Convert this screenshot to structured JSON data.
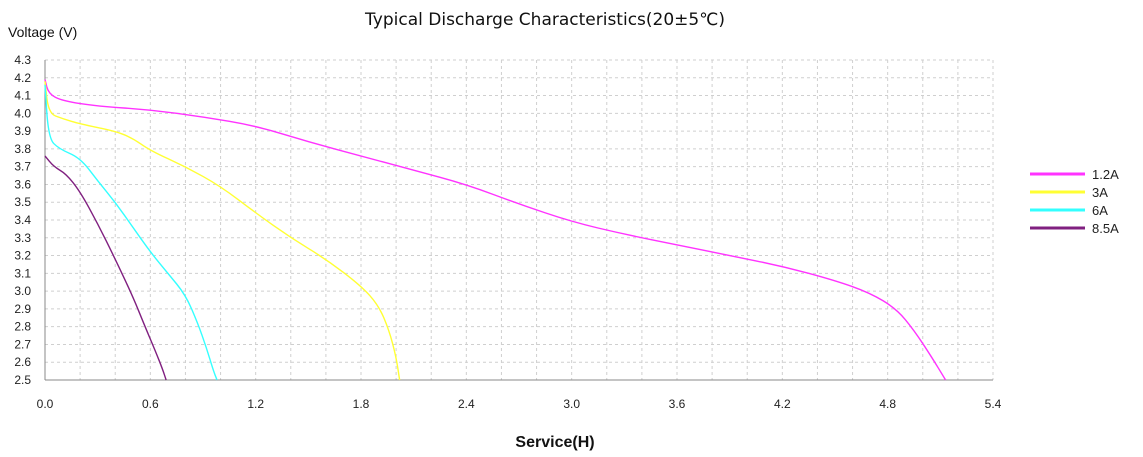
{
  "chart_data": {
    "type": "line",
    "title": "Typical Discharge Characteristics(20±5℃)",
    "xlabel": "Service(H)",
    "ylabel": "Voltage (V)",
    "xlim": [
      0.0,
      5.4
    ],
    "ylim": [
      2.5,
      4.3
    ],
    "grid": true,
    "legend": "right",
    "x_ticks": [
      "0.0",
      "0.6",
      "1.2",
      "1.8",
      "2.4",
      "3.0",
      "3.6",
      "4.2",
      "4.8",
      "5.4"
    ],
    "y_ticks": [
      "4.3",
      "4.2",
      "4.1",
      "4.0",
      "3.9",
      "3.8",
      "3.7",
      "3.6",
      "3.5",
      "3.4",
      "3.3",
      "3.2",
      "3.1",
      "3.0",
      "2.9",
      "2.8",
      "2.7",
      "2.6",
      "2.5"
    ],
    "series": [
      {
        "name": "1.2A",
        "color": "#ff33ff",
        "points": [
          [
            0.0,
            4.19
          ],
          [
            0.02,
            4.11
          ],
          [
            0.1,
            4.07
          ],
          [
            0.3,
            4.04
          ],
          [
            0.6,
            4.02
          ],
          [
            0.9,
            3.98
          ],
          [
            1.2,
            3.93
          ],
          [
            1.5,
            3.84
          ],
          [
            1.8,
            3.76
          ],
          [
            2.1,
            3.68
          ],
          [
            2.4,
            3.6
          ],
          [
            2.7,
            3.49
          ],
          [
            3.0,
            3.39
          ],
          [
            3.3,
            3.32
          ],
          [
            3.6,
            3.26
          ],
          [
            3.9,
            3.2
          ],
          [
            4.2,
            3.14
          ],
          [
            4.5,
            3.06
          ],
          [
            4.7,
            2.99
          ],
          [
            4.85,
            2.9
          ],
          [
            4.95,
            2.78
          ],
          [
            5.05,
            2.63
          ],
          [
            5.13,
            2.5
          ]
        ]
      },
      {
        "name": "3A",
        "color": "#ffff33",
        "points": [
          [
            0.0,
            4.18
          ],
          [
            0.02,
            4.0
          ],
          [
            0.1,
            3.97
          ],
          [
            0.2,
            3.94
          ],
          [
            0.4,
            3.9
          ],
          [
            0.5,
            3.86
          ],
          [
            0.6,
            3.79
          ],
          [
            0.8,
            3.7
          ],
          [
            1.0,
            3.59
          ],
          [
            1.2,
            3.44
          ],
          [
            1.4,
            3.3
          ],
          [
            1.6,
            3.18
          ],
          [
            1.8,
            3.03
          ],
          [
            1.9,
            2.92
          ],
          [
            1.96,
            2.78
          ],
          [
            2.0,
            2.63
          ],
          [
            2.02,
            2.5
          ]
        ]
      },
      {
        "name": "6A",
        "color": "#33ffff",
        "points": [
          [
            0.0,
            4.16
          ],
          [
            0.02,
            3.86
          ],
          [
            0.08,
            3.8
          ],
          [
            0.2,
            3.75
          ],
          [
            0.3,
            3.62
          ],
          [
            0.4,
            3.5
          ],
          [
            0.5,
            3.36
          ],
          [
            0.6,
            3.22
          ],
          [
            0.7,
            3.1
          ],
          [
            0.8,
            2.98
          ],
          [
            0.87,
            2.82
          ],
          [
            0.92,
            2.68
          ],
          [
            0.96,
            2.55
          ],
          [
            0.98,
            2.5
          ]
        ]
      },
      {
        "name": "8.5A",
        "color": "#802080",
        "points": [
          [
            0.0,
            3.76
          ],
          [
            0.05,
            3.7
          ],
          [
            0.12,
            3.66
          ],
          [
            0.2,
            3.56
          ],
          [
            0.3,
            3.38
          ],
          [
            0.4,
            3.18
          ],
          [
            0.5,
            2.97
          ],
          [
            0.57,
            2.8
          ],
          [
            0.63,
            2.66
          ],
          [
            0.67,
            2.56
          ],
          [
            0.69,
            2.5
          ]
        ]
      }
    ]
  }
}
